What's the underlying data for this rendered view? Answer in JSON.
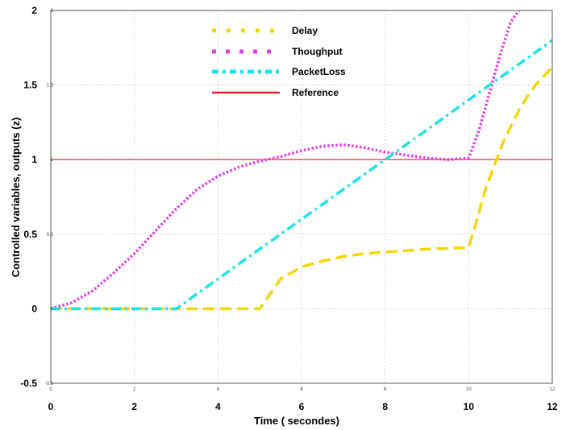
{
  "chart_data": {
    "type": "line",
    "title": "",
    "xlabel": "Time ( secondes)",
    "ylabel": "Controlled variables, outputs (z)",
    "xlim": [
      0,
      12
    ],
    "ylim": [
      -0.5,
      2
    ],
    "grid": true,
    "legend_position": "top-center",
    "x_ticks": [
      0,
      2,
      4,
      6,
      8,
      10,
      12
    ],
    "x_tick_labels": [
      "0",
      "2",
      "4",
      "6",
      "8",
      "10",
      "12"
    ],
    "y_ticks": [
      -0.5,
      0,
      0.5,
      1,
      1.5,
      2
    ],
    "y_tick_labels": [
      "-0.5",
      "0",
      "0.5",
      "1",
      "1.5",
      "2"
    ],
    "x_tick_labels_small": [
      "0",
      "2",
      "4",
      "6",
      "8",
      "10",
      "12"
    ],
    "y_tick_labels_small": [
      "-0.5",
      "0",
      "0.5",
      "1",
      "1.5",
      "2"
    ],
    "series": [
      {
        "name": "Delay",
        "color": "#f5d60a",
        "style": "dashed",
        "x": [
          0,
          1,
          2,
          3,
          4,
          5,
          5.5,
          6,
          6.5,
          7,
          7.5,
          8,
          8.5,
          9,
          9.5,
          10,
          10.2,
          10.4,
          10.6,
          10.8,
          11,
          11.2,
          11.4,
          11.6,
          11.8,
          12
        ],
        "y": [
          0,
          0,
          0,
          0,
          0,
          0,
          0.2,
          0.28,
          0.32,
          0.35,
          0.37,
          0.38,
          0.39,
          0.4,
          0.405,
          0.41,
          0.6,
          0.8,
          0.95,
          1.1,
          1.22,
          1.33,
          1.42,
          1.5,
          1.56,
          1.62
        ]
      },
      {
        "name": "Thoughput",
        "color": "#e23ee8",
        "style": "dotted",
        "x": [
          0,
          0.5,
          1,
          1.5,
          2,
          2.5,
          3,
          3.5,
          4,
          4.5,
          5,
          5.5,
          6,
          6.5,
          7,
          7.5,
          8,
          8.5,
          9,
          9.5,
          10,
          10.25,
          10.5,
          10.75,
          11,
          11.2
        ],
        "y": [
          0,
          0.04,
          0.12,
          0.24,
          0.37,
          0.52,
          0.67,
          0.8,
          0.89,
          0.95,
          0.99,
          1.02,
          1.06,
          1.09,
          1.1,
          1.08,
          1.05,
          1.03,
          1.01,
          1.0,
          1.01,
          1.2,
          1.45,
          1.7,
          1.92,
          2.0
        ]
      },
      {
        "name": "PacketLoss",
        "color": "#1ee2ea",
        "style": "dashdot",
        "x": [
          0,
          1,
          2,
          3,
          4,
          5,
          6,
          7,
          8,
          9,
          10,
          11,
          12
        ],
        "y": [
          0,
          0,
          0,
          0,
          0.2,
          0.4,
          0.6,
          0.8,
          1.0,
          1.2,
          1.4,
          1.6,
          1.8
        ]
      },
      {
        "name": "Reference",
        "color": "#e8202a",
        "style": "solid",
        "x": [
          0,
          12
        ],
        "y": [
          1,
          1
        ]
      }
    ]
  }
}
